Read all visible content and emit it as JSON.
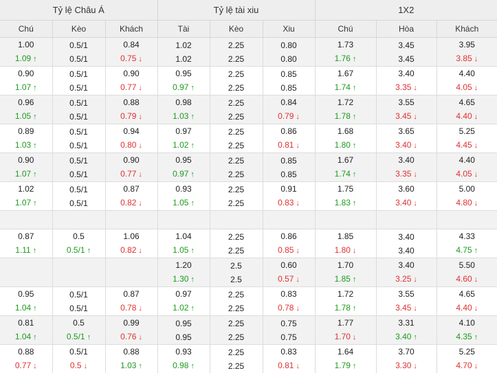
{
  "groups": [
    {
      "label": "Tỷ lệ Châu Á"
    },
    {
      "label": "Tỷ lệ tài xiu"
    },
    {
      "label": "1X2"
    }
  ],
  "columns": [
    "Chú",
    "Kèo",
    "Khách",
    "Tài",
    "Kèo",
    "Xiu",
    "Chú",
    "Hòa",
    "Khách"
  ],
  "rows": [
    {
      "alt": true,
      "cells": [
        [
          {
            "t": "1.00"
          },
          {
            "t": "1.09",
            "d": "up"
          }
        ],
        [
          {
            "t": "0.5/1"
          },
          {
            "t": "0.5/1"
          }
        ],
        [
          {
            "t": "0.84"
          },
          {
            "t": "0.75",
            "d": "down"
          }
        ],
        [
          {
            "t": "1.02"
          },
          {
            "t": "1.02"
          }
        ],
        [
          {
            "t": "2.25"
          },
          {
            "t": "2.25"
          }
        ],
        [
          {
            "t": "0.80"
          },
          {
            "t": "0.80"
          }
        ],
        [
          {
            "t": "1.73"
          },
          {
            "t": "1.76",
            "d": "up"
          }
        ],
        [
          {
            "t": "3.45"
          },
          {
            "t": "3.45"
          }
        ],
        [
          {
            "t": "3.95"
          },
          {
            "t": "3.85",
            "d": "down"
          }
        ]
      ]
    },
    {
      "alt": false,
      "cells": [
        [
          {
            "t": "0.90"
          },
          {
            "t": "1.07",
            "d": "up"
          }
        ],
        [
          {
            "t": "0.5/1"
          },
          {
            "t": "0.5/1"
          }
        ],
        [
          {
            "t": "0.90"
          },
          {
            "t": "0.77",
            "d": "down"
          }
        ],
        [
          {
            "t": "0.95"
          },
          {
            "t": "0.97",
            "d": "up"
          }
        ],
        [
          {
            "t": "2.25"
          },
          {
            "t": "2.25"
          }
        ],
        [
          {
            "t": "0.85"
          },
          {
            "t": "0.85"
          }
        ],
        [
          {
            "t": "1.67"
          },
          {
            "t": "1.74",
            "d": "up"
          }
        ],
        [
          {
            "t": "3.40"
          },
          {
            "t": "3.35",
            "d": "down"
          }
        ],
        [
          {
            "t": "4.40"
          },
          {
            "t": "4.05",
            "d": "down"
          }
        ]
      ]
    },
    {
      "alt": true,
      "cells": [
        [
          {
            "t": "0.96"
          },
          {
            "t": "1.05",
            "d": "up"
          }
        ],
        [
          {
            "t": "0.5/1"
          },
          {
            "t": "0.5/1"
          }
        ],
        [
          {
            "t": "0.88"
          },
          {
            "t": "0.79",
            "d": "down"
          }
        ],
        [
          {
            "t": "0.98"
          },
          {
            "t": "1.03",
            "d": "up"
          }
        ],
        [
          {
            "t": "2.25"
          },
          {
            "t": "2.25"
          }
        ],
        [
          {
            "t": "0.84"
          },
          {
            "t": "0.79",
            "d": "down"
          }
        ],
        [
          {
            "t": "1.72"
          },
          {
            "t": "1.78",
            "d": "up"
          }
        ],
        [
          {
            "t": "3.55"
          },
          {
            "t": "3.45",
            "d": "down"
          }
        ],
        [
          {
            "t": "4.65"
          },
          {
            "t": "4.40",
            "d": "down"
          }
        ]
      ]
    },
    {
      "alt": false,
      "cells": [
        [
          {
            "t": "0.89"
          },
          {
            "t": "1.03",
            "d": "up"
          }
        ],
        [
          {
            "t": "0.5/1"
          },
          {
            "t": "0.5/1"
          }
        ],
        [
          {
            "t": "0.94"
          },
          {
            "t": "0.80",
            "d": "down"
          }
        ],
        [
          {
            "t": "0.97"
          },
          {
            "t": "1.02",
            "d": "up"
          }
        ],
        [
          {
            "t": "2.25"
          },
          {
            "t": "2.25"
          }
        ],
        [
          {
            "t": "0.86"
          },
          {
            "t": "0.81",
            "d": "down"
          }
        ],
        [
          {
            "t": "1.68"
          },
          {
            "t": "1.80",
            "d": "up"
          }
        ],
        [
          {
            "t": "3.65"
          },
          {
            "t": "3.40",
            "d": "down"
          }
        ],
        [
          {
            "t": "5.25"
          },
          {
            "t": "4.45",
            "d": "down"
          }
        ]
      ]
    },
    {
      "alt": true,
      "cells": [
        [
          {
            "t": "0.90"
          },
          {
            "t": "1.07",
            "d": "up"
          }
        ],
        [
          {
            "t": "0.5/1"
          },
          {
            "t": "0.5/1"
          }
        ],
        [
          {
            "t": "0.90"
          },
          {
            "t": "0.77",
            "d": "down"
          }
        ],
        [
          {
            "t": "0.95"
          },
          {
            "t": "0.97",
            "d": "up"
          }
        ],
        [
          {
            "t": "2.25"
          },
          {
            "t": "2.25"
          }
        ],
        [
          {
            "t": "0.85"
          },
          {
            "t": "0.85"
          }
        ],
        [
          {
            "t": "1.67"
          },
          {
            "t": "1.74",
            "d": "up"
          }
        ],
        [
          {
            "t": "3.40"
          },
          {
            "t": "3.35",
            "d": "down"
          }
        ],
        [
          {
            "t": "4.40"
          },
          {
            "t": "4.05",
            "d": "down"
          }
        ]
      ]
    },
    {
      "alt": false,
      "cells": [
        [
          {
            "t": "1.02"
          },
          {
            "t": "1.07",
            "d": "up"
          }
        ],
        [
          {
            "t": "0.5/1"
          },
          {
            "t": "0.5/1"
          }
        ],
        [
          {
            "t": "0.87"
          },
          {
            "t": "0.82",
            "d": "down"
          }
        ],
        [
          {
            "t": "0.93"
          },
          {
            "t": "1.05",
            "d": "up"
          }
        ],
        [
          {
            "t": "2.25"
          },
          {
            "t": "2.25"
          }
        ],
        [
          {
            "t": "0.91"
          },
          {
            "t": "0.83",
            "d": "down"
          }
        ],
        [
          {
            "t": "1.75"
          },
          {
            "t": "1.83",
            "d": "up"
          }
        ],
        [
          {
            "t": "3.60"
          },
          {
            "t": "3.40",
            "d": "down"
          }
        ],
        [
          {
            "t": "5.00"
          },
          {
            "t": "4.80",
            "d": "down"
          }
        ]
      ]
    },
    {
      "alt": true,
      "empty": true,
      "cells": [
        [],
        [],
        [],
        [],
        [],
        [],
        [],
        [],
        []
      ]
    },
    {
      "alt": false,
      "cells": [
        [
          {
            "t": "0.87"
          },
          {
            "t": "1.11",
            "d": "up"
          }
        ],
        [
          {
            "t": "0.5"
          },
          {
            "t": "0.5/1",
            "d": "up"
          }
        ],
        [
          {
            "t": "1.06"
          },
          {
            "t": "0.82",
            "d": "down"
          }
        ],
        [
          {
            "t": "1.04"
          },
          {
            "t": "1.05",
            "d": "up"
          }
        ],
        [
          {
            "t": "2.25"
          },
          {
            "t": "2.25"
          }
        ],
        [
          {
            "t": "0.86"
          },
          {
            "t": "0.85",
            "d": "down"
          }
        ],
        [
          {
            "t": "1.85"
          },
          {
            "t": "1.80",
            "d": "down"
          }
        ],
        [
          {
            "t": "3.40"
          },
          {
            "t": "3.40"
          }
        ],
        [
          {
            "t": "4.33"
          },
          {
            "t": "4.75",
            "d": "up"
          }
        ]
      ]
    },
    {
      "alt": true,
      "cells": [
        [],
        [],
        [],
        [
          {
            "t": "1.20"
          },
          {
            "t": "1.30",
            "d": "up"
          }
        ],
        [
          {
            "t": "2.5"
          },
          {
            "t": "2.5"
          }
        ],
        [
          {
            "t": "0.60"
          },
          {
            "t": "0.57",
            "d": "down"
          }
        ],
        [
          {
            "t": "1.70"
          },
          {
            "t": "1.85",
            "d": "up"
          }
        ],
        [
          {
            "t": "3.40"
          },
          {
            "t": "3.25",
            "d": "down"
          }
        ],
        [
          {
            "t": "5.50"
          },
          {
            "t": "4.60",
            "d": "down"
          }
        ]
      ]
    },
    {
      "alt": false,
      "cells": [
        [
          {
            "t": "0.95"
          },
          {
            "t": "1.04",
            "d": "up"
          }
        ],
        [
          {
            "t": "0.5/1"
          },
          {
            "t": "0.5/1"
          }
        ],
        [
          {
            "t": "0.87"
          },
          {
            "t": "0.78",
            "d": "down"
          }
        ],
        [
          {
            "t": "0.97"
          },
          {
            "t": "1.02",
            "d": "up"
          }
        ],
        [
          {
            "t": "2.25"
          },
          {
            "t": "2.25"
          }
        ],
        [
          {
            "t": "0.83"
          },
          {
            "t": "0.78",
            "d": "down"
          }
        ],
        [
          {
            "t": "1.72"
          },
          {
            "t": "1.78",
            "d": "up"
          }
        ],
        [
          {
            "t": "3.55"
          },
          {
            "t": "3.45",
            "d": "down"
          }
        ],
        [
          {
            "t": "4.65"
          },
          {
            "t": "4.40",
            "d": "down"
          }
        ]
      ]
    },
    {
      "alt": true,
      "cells": [
        [
          {
            "t": "0.81"
          },
          {
            "t": "1.04",
            "d": "up"
          }
        ],
        [
          {
            "t": "0.5"
          },
          {
            "t": "0.5/1",
            "d": "up"
          }
        ],
        [
          {
            "t": "0.99"
          },
          {
            "t": "0.76",
            "d": "down"
          }
        ],
        [
          {
            "t": "0.95"
          },
          {
            "t": "0.95"
          }
        ],
        [
          {
            "t": "2.25"
          },
          {
            "t": "2.25"
          }
        ],
        [
          {
            "t": "0.75"
          },
          {
            "t": "0.75"
          }
        ],
        [
          {
            "t": "1.77"
          },
          {
            "t": "1.70",
            "d": "down"
          }
        ],
        [
          {
            "t": "3.31"
          },
          {
            "t": "3.40",
            "d": "up"
          }
        ],
        [
          {
            "t": "4.10"
          },
          {
            "t": "4.35",
            "d": "up"
          }
        ]
      ]
    },
    {
      "alt": false,
      "cells": [
        [
          {
            "t": "0.88"
          },
          {
            "t": "0.77",
            "d": "down"
          }
        ],
        [
          {
            "t": "0.5/1"
          },
          {
            "t": "0.5",
            "d": "down"
          }
        ],
        [
          {
            "t": "0.88"
          },
          {
            "t": "1.03",
            "d": "up"
          }
        ],
        [
          {
            "t": "0.93"
          },
          {
            "t": "0.98",
            "d": "up"
          }
        ],
        [
          {
            "t": "2.25"
          },
          {
            "t": "2.25"
          }
        ],
        [
          {
            "t": "0.83"
          },
          {
            "t": "0.81",
            "d": "down"
          }
        ],
        [
          {
            "t": "1.64"
          },
          {
            "t": "1.79",
            "d": "up"
          }
        ],
        [
          {
            "t": "3.70"
          },
          {
            "t": "3.30",
            "d": "down"
          }
        ],
        [
          {
            "t": "5.25"
          },
          {
            "t": "4.70",
            "d": "down"
          }
        ]
      ]
    }
  ],
  "arrows": {
    "up": "↑",
    "down": "↓"
  },
  "colors": {
    "up": "#1c9b1c",
    "down": "#e03030",
    "header_bg": "#eeeeee",
    "alt_row_bg": "#f2f2f2"
  },
  "icons": {
    "up": "arrow-up-icon",
    "down": "arrow-down-icon"
  }
}
